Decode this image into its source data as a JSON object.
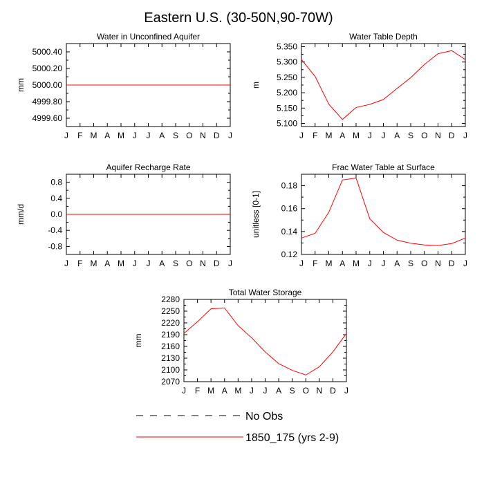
{
  "figure_title": "Eastern U.S. (30-50N,90-70W)",
  "month_labels": [
    "J",
    "F",
    "M",
    "A",
    "M",
    "J",
    "J",
    "A",
    "S",
    "O",
    "N",
    "D",
    "J"
  ],
  "colors": {
    "series": "#ff0000",
    "obs": "#000000",
    "axis": "#000000"
  },
  "chart_data": [
    {
      "id": "water-unconfined",
      "type": "line",
      "title": "Water in Unconfined Aquifer",
      "xlabel": "",
      "ylabel": "mm",
      "ylim": [
        4999.5,
        5000.5
      ],
      "yticks": [
        4999.6,
        4999.8,
        5000.0,
        5000.2,
        5000.4
      ],
      "ytick_labels": [
        "4999.60",
        "4999.80",
        "5000.00",
        "5000.20",
        "5000.40"
      ],
      "categories": [
        "J",
        "F",
        "M",
        "A",
        "M",
        "J",
        "J",
        "A",
        "S",
        "O",
        "N",
        "D",
        "J"
      ],
      "series": [
        {
          "name": "1850_175 (yrs 2-9)",
          "values": [
            5000,
            5000,
            5000,
            5000,
            5000,
            5000,
            5000,
            5000,
            5000,
            5000,
            5000,
            5000,
            5000
          ]
        }
      ]
    },
    {
      "id": "water-table-depth",
      "type": "line",
      "title": "Water Table Depth",
      "xlabel": "",
      "ylabel": "m",
      "ylim": [
        5.09,
        5.36
      ],
      "yticks": [
        5.1,
        5.15,
        5.2,
        5.25,
        5.3,
        5.35
      ],
      "ytick_labels": [
        "5.100",
        "5.150",
        "5.200",
        "5.250",
        "5.300",
        "5.350"
      ],
      "categories": [
        "J",
        "F",
        "M",
        "A",
        "M",
        "J",
        "J",
        "A",
        "S",
        "O",
        "N",
        "D",
        "J"
      ],
      "series": [
        {
          "name": "1850_175 (yrs 2-9)",
          "values": [
            5.308,
            5.253,
            5.163,
            5.113,
            5.152,
            5.162,
            5.178,
            5.214,
            5.249,
            5.292,
            5.327,
            5.337,
            5.308
          ]
        }
      ]
    },
    {
      "id": "recharge-rate",
      "type": "line",
      "title": "Aquifer Recharge Rate",
      "xlabel": "",
      "ylabel": "mm/d",
      "ylim": [
        -1.0,
        1.0
      ],
      "yticks": [
        -0.8,
        -0.4,
        0.0,
        0.4,
        0.8
      ],
      "ytick_labels": [
        "-0.8",
        "-0.4",
        "0.0",
        "0.4",
        "0.8"
      ],
      "categories": [
        "J",
        "F",
        "M",
        "A",
        "M",
        "J",
        "J",
        "A",
        "S",
        "O",
        "N",
        "D",
        "J"
      ],
      "series": [
        {
          "name": "1850_175 (yrs 2-9)",
          "values": [
            0,
            0,
            0,
            0,
            0,
            0,
            0,
            0,
            0,
            0,
            0,
            0,
            0
          ]
        }
      ]
    },
    {
      "id": "frac-water-table",
      "type": "line",
      "title": "Frac Water Table at Surface",
      "xlabel": "",
      "ylabel": "unitless [0-1]",
      "ylim": [
        0.12,
        0.19
      ],
      "yticks": [
        0.12,
        0.14,
        0.16,
        0.18
      ],
      "ytick_labels": [
        "0.12",
        "0.14",
        "0.16",
        "0.18"
      ],
      "categories": [
        "J",
        "F",
        "M",
        "A",
        "M",
        "J",
        "J",
        "A",
        "S",
        "O",
        "N",
        "D",
        "J"
      ],
      "series": [
        {
          "name": "1850_175 (yrs 2-9)",
          "values": [
            0.1343,
            0.1385,
            0.1568,
            0.185,
            0.1867,
            0.1512,
            0.1392,
            0.1325,
            0.1298,
            0.1283,
            0.1278,
            0.1295,
            0.1343
          ]
        }
      ]
    },
    {
      "id": "total-water-storage",
      "type": "line",
      "title": "Total Water Storage",
      "xlabel": "",
      "ylabel": "mm",
      "ylim": [
        2070,
        2280
      ],
      "yticks": [
        2070,
        2100,
        2130,
        2160,
        2190,
        2220,
        2250,
        2280
      ],
      "ytick_labels": [
        "2070",
        "2100",
        "2130",
        "2160",
        "2190",
        "2220",
        "2250",
        "2280"
      ],
      "categories": [
        "J",
        "F",
        "M",
        "A",
        "M",
        "J",
        "J",
        "A",
        "S",
        "O",
        "N",
        "D",
        "J"
      ],
      "series": [
        {
          "name": "1850_175 (yrs 2-9)",
          "values": [
            2193,
            2223,
            2256,
            2258,
            2213,
            2182,
            2146,
            2116,
            2099,
            2087,
            2108,
            2146,
            2193
          ]
        }
      ]
    }
  ],
  "legend": [
    {
      "label": "No Obs",
      "style": "dashed",
      "color": "#000000"
    },
    {
      "label": "1850_175 (yrs 2-9)",
      "style": "solid",
      "color": "#ff0000"
    }
  ]
}
